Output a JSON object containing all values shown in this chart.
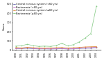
{
  "years": [
    1990,
    1991,
    1992,
    1993,
    1994,
    1995,
    1996,
    1997,
    1998,
    1999,
    2000,
    2001,
    2002,
    2003,
    2004
  ],
  "cns_lt60": [
    20,
    18,
    22,
    18,
    15,
    16,
    14,
    16,
    18,
    14,
    16,
    20,
    22,
    22,
    26
  ],
  "bact_lt60": [
    22,
    20,
    28,
    22,
    18,
    18,
    16,
    20,
    22,
    16,
    18,
    22,
    28,
    30,
    34
  ],
  "cns_ge60": [
    30,
    25,
    32,
    28,
    24,
    22,
    24,
    28,
    30,
    24,
    28,
    32,
    36,
    38,
    40
  ],
  "bact_ge60": [
    45,
    48,
    65,
    50,
    42,
    45,
    42,
    50,
    75,
    48,
    60,
    90,
    130,
    180,
    480
  ],
  "legend_labels": [
    "Central nervous system (<60 yrs)",
    "Bacteremia (<60 yrs)",
    "Central nervous system (≥60 yrs)",
    "Bacteremia (≥60 yrs)"
  ],
  "colors": [
    "#7777bb",
    "#cc77cc",
    "#dd8833",
    "#88cc88"
  ],
  "ylabel": "Cases",
  "ylim": [
    0,
    510
  ],
  "yticks": [
    0,
    100,
    200,
    300,
    400,
    500
  ],
  "background_color": "#ffffff"
}
